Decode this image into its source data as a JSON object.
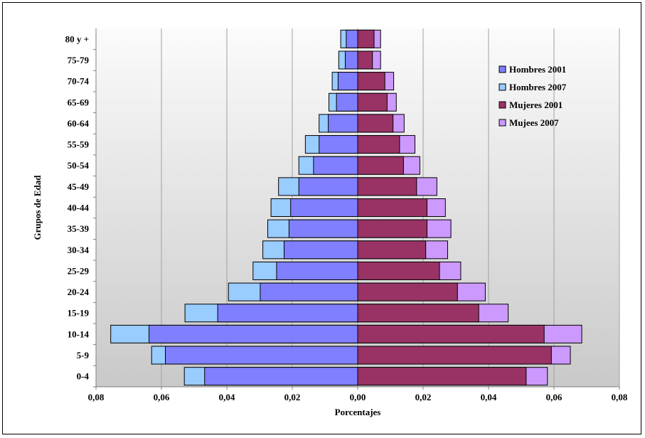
{
  "chart_data": {
    "type": "bar",
    "orientation": "horizontal",
    "layout": "population-pyramid",
    "ylabel": "Grupos de Edad",
    "xlabel": "Porcentajes",
    "categories": [
      "0-4",
      "5-9",
      "10-14",
      "15-19",
      "20-24",
      "25-29",
      "30-34",
      "35-39",
      "40-44",
      "45-49",
      "50-54",
      "55-59",
      "60-64",
      "65-69",
      "70-74",
      "75-79",
      "80 y +"
    ],
    "x_ticks": [
      "0,08",
      "0,06",
      "0,04",
      "0,02",
      "0,00",
      "0,02",
      "0,04",
      "0,06",
      "0,08"
    ],
    "xlim": [
      -0.08,
      0.08
    ],
    "series": [
      {
        "name": "Hombres 2001",
        "side": "left",
        "color": "#7f7fff",
        "values": [
          0.0468,
          0.0588,
          0.0638,
          0.0428,
          0.0298,
          0.0248,
          0.0225,
          0.021,
          0.0205,
          0.018,
          0.0135,
          0.0118,
          0.009,
          0.0065,
          0.006,
          0.0038,
          0.0035
        ]
      },
      {
        "name": "Hombres 2007",
        "side": "left",
        "color": "#99ccff",
        "values": [
          0.053,
          0.063,
          0.0755,
          0.0528,
          0.0395,
          0.032,
          0.029,
          0.0275,
          0.0265,
          0.0242,
          0.018,
          0.016,
          0.0118,
          0.0088,
          0.0078,
          0.0058,
          0.0052
        ]
      },
      {
        "name": "Mujeres 2001",
        "side": "right",
        "color": "#993366",
        "values": [
          0.0515,
          0.0592,
          0.057,
          0.037,
          0.0305,
          0.025,
          0.0208,
          0.0212,
          0.0212,
          0.018,
          0.014,
          0.0128,
          0.0108,
          0.009,
          0.0083,
          0.0045,
          0.005
        ]
      },
      {
        "name": "Mujees 2007",
        "side": "right",
        "color": "#cc99ff",
        "values": [
          0.058,
          0.065,
          0.0685,
          0.046,
          0.039,
          0.0315,
          0.0275,
          0.0285,
          0.0268,
          0.0242,
          0.019,
          0.0175,
          0.0142,
          0.0118,
          0.011,
          0.007,
          0.007
        ]
      }
    ],
    "grid": true,
    "legend": "right"
  }
}
